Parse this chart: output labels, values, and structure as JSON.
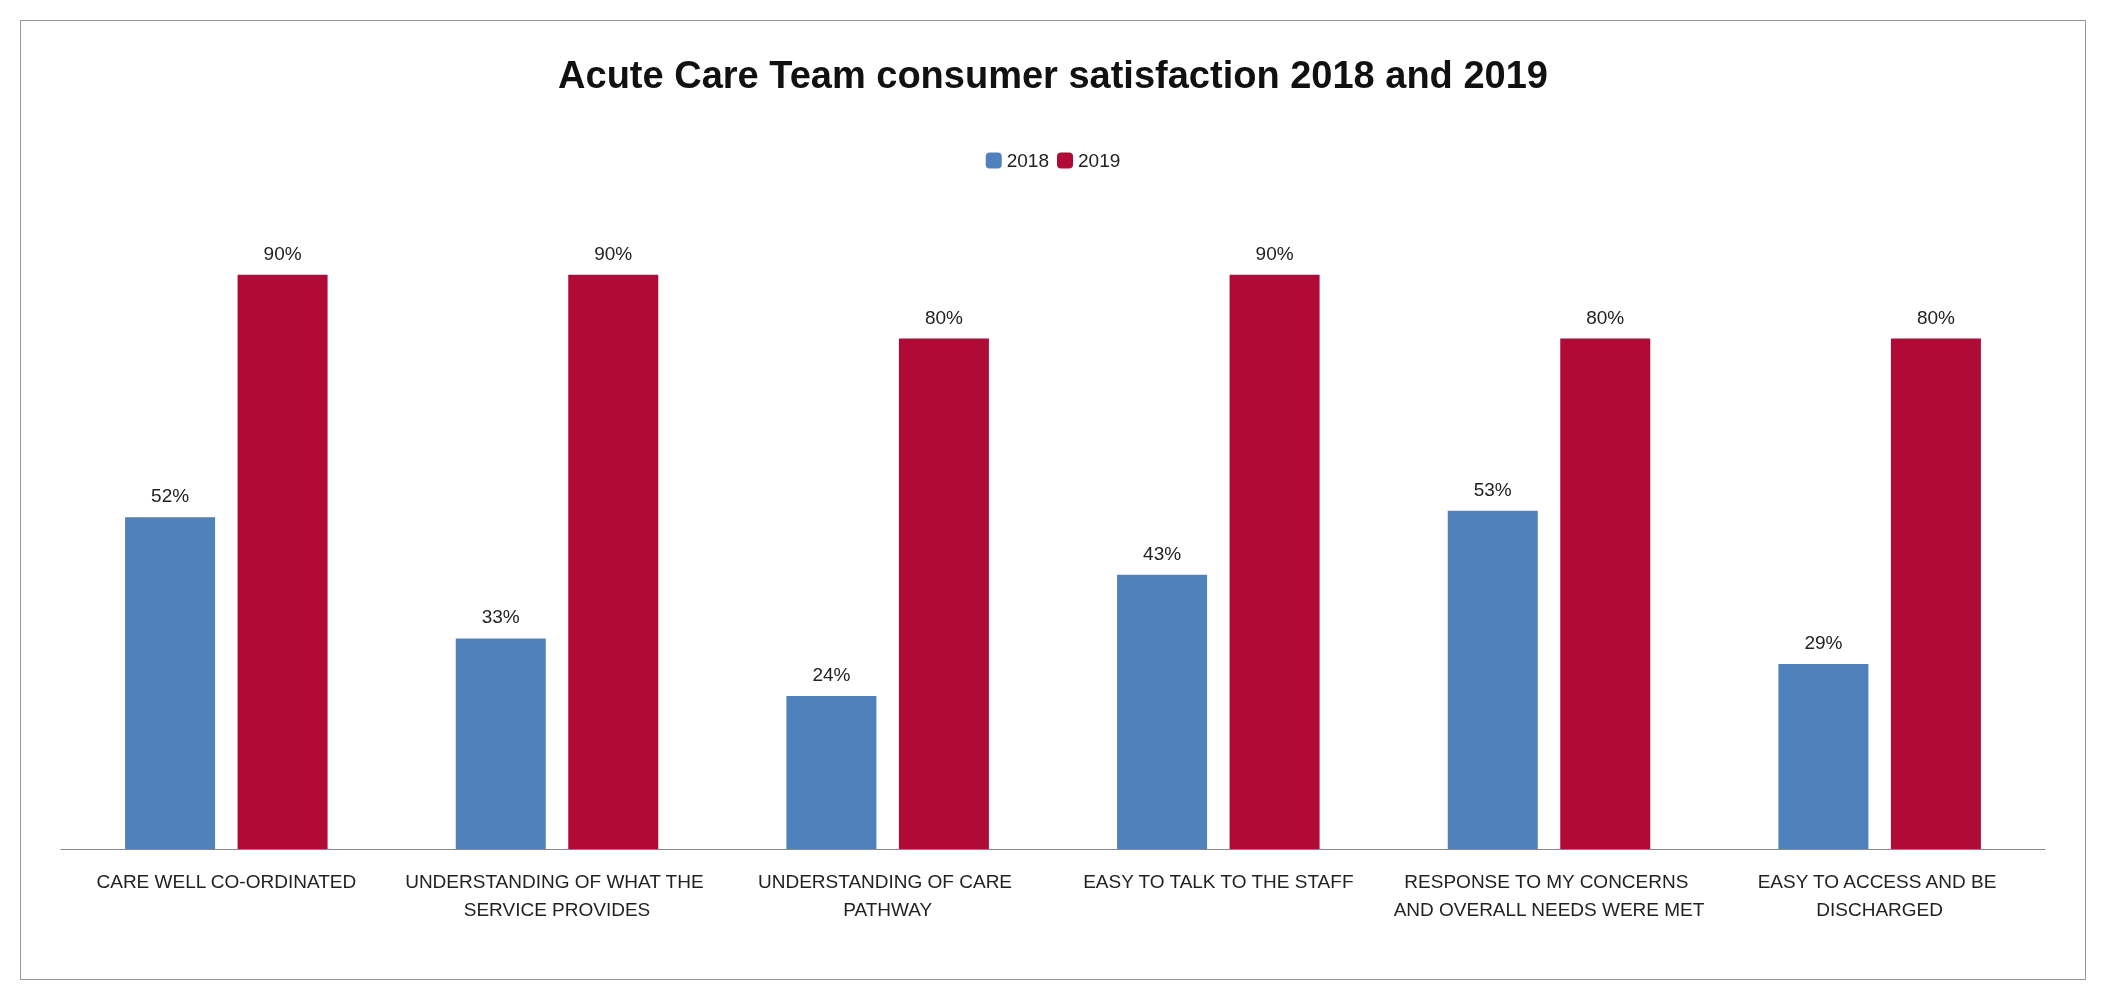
{
  "chart_data": {
    "type": "bar",
    "title": "Acute Care Team consumer satisfaction 2018 and 2019",
    "categories": [
      "CARE WELL CO-ORDINATED",
      "UNDERSTANDING OF WHAT THE SERVICE PROVIDES",
      "UNDERSTANDING OF CARE PATHWAY",
      "EASY TO TALK TO THE STAFF",
      "RESPONSE TO MY CONCERNS AND OVERALL NEEDS WERE MET",
      "EASY TO ACCESS AND BE DISCHARGED"
    ],
    "series": [
      {
        "name": "2018",
        "color": "#4f81bd",
        "values": [
          52,
          33,
          24,
          43,
          53,
          29
        ],
        "value_labels": [
          "52%",
          "33%",
          "24%",
          "43%",
          "53%",
          "29%"
        ]
      },
      {
        "name": "2019",
        "color": "#b00a36",
        "values": [
          90,
          90,
          80,
          90,
          80,
          80
        ],
        "value_labels": [
          "90%",
          "90%",
          "80%",
          "90%",
          "80%",
          "80%"
        ]
      }
    ],
    "legend": "top"
  }
}
